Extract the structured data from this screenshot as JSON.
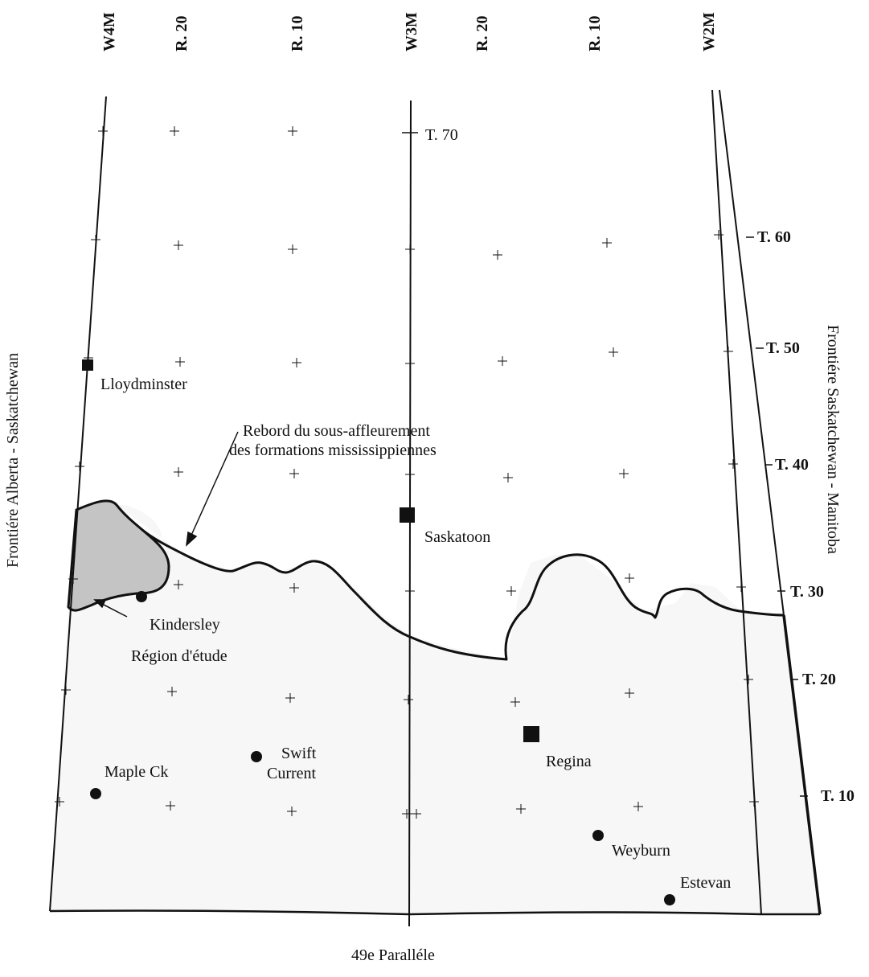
{
  "meridians": {
    "w4m": "W4M",
    "r20_west": "R. 20",
    "r10_west": "R. 10",
    "w3m": "W3M",
    "r20_east": "R. 20",
    "r10_east": "R. 10",
    "w2m": "W2M"
  },
  "townships": {
    "t70": "T. 70",
    "t60": "T. 60",
    "t50": "T. 50",
    "t40": "T. 40",
    "t30": "T. 30",
    "t20": "T. 20",
    "t10": "T. 10"
  },
  "borders": {
    "west": "Frontiére Alberta - Saskatchewan",
    "east": "Frontiére Saskatchewan - Manitoba",
    "south": "49e Paralléle"
  },
  "cities": {
    "lloydminster": "Lloydminster",
    "saskatoon": "Saskatoon",
    "kindersley": "Kindersley",
    "swift_line1": "Swift",
    "swift_line2": "Current",
    "maple_ck": "Maple Ck",
    "regina": "Regina",
    "weyburn": "Weyburn",
    "estevan": "Estevan"
  },
  "annotations": {
    "subcrop_line1": "Rebord du sous-affleurement",
    "subcrop_line2": "des formations mississippiennes",
    "study_area": "Région  d'étude"
  },
  "colors": {
    "subcrop_fill": "#f7f7f7",
    "study_area_fill": "#c4c4c4",
    "ink": "#111111"
  }
}
